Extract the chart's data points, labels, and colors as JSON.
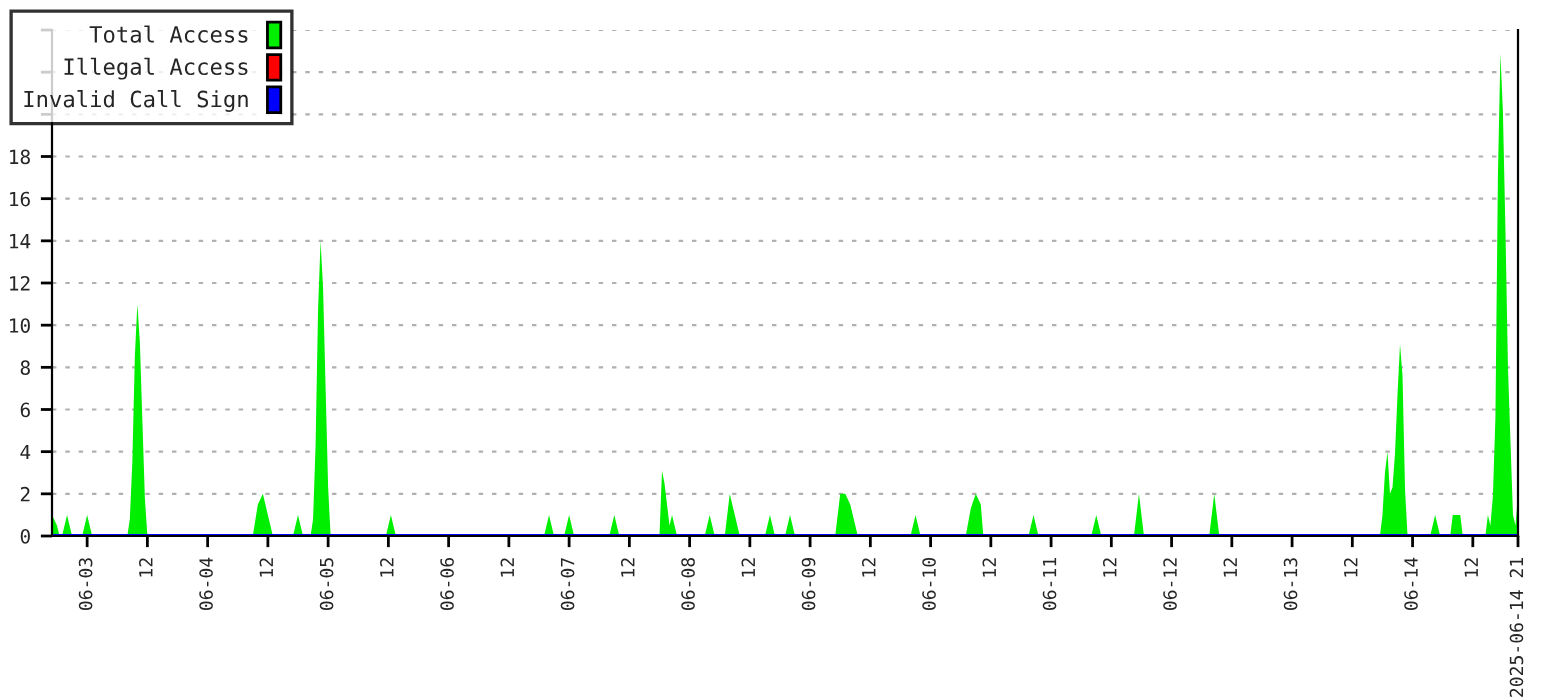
{
  "chart_data": {
    "type": "area",
    "xlim": [
      "2025-06-02T17:00",
      "2025-06-14T21:00"
    ],
    "xticks": [
      {
        "value": "2025-06-03",
        "label": "06-03"
      },
      {
        "value": "2025-06-03T12:00",
        "label": "12"
      },
      {
        "value": "2025-06-04",
        "label": "06-04"
      },
      {
        "value": "2025-06-04T12:00",
        "label": "12"
      },
      {
        "value": "2025-06-05",
        "label": "06-05"
      },
      {
        "value": "2025-06-05T12:00",
        "label": "12"
      },
      {
        "value": "2025-06-06",
        "label": "06-06"
      },
      {
        "value": "2025-06-06T12:00",
        "label": "12"
      },
      {
        "value": "2025-06-07",
        "label": "06-07"
      },
      {
        "value": "2025-06-07T12:00",
        "label": "12"
      },
      {
        "value": "2025-06-08",
        "label": "06-08"
      },
      {
        "value": "2025-06-08T12:00",
        "label": "12"
      },
      {
        "value": "2025-06-09",
        "label": "06-09"
      },
      {
        "value": "2025-06-09T12:00",
        "label": "12"
      },
      {
        "value": "2025-06-10",
        "label": "06-10"
      },
      {
        "value": "2025-06-10T12:00",
        "label": "12"
      },
      {
        "value": "2025-06-11",
        "label": "06-11"
      },
      {
        "value": "2025-06-11T12:00",
        "label": "12"
      },
      {
        "value": "2025-06-12",
        "label": "06-12"
      },
      {
        "value": "2025-06-12T12:00",
        "label": "12"
      },
      {
        "value": "2025-06-13",
        "label": "06-13"
      },
      {
        "value": "2025-06-13T12:00",
        "label": "12"
      },
      {
        "value": "2025-06-14",
        "label": "06-14"
      },
      {
        "value": "2025-06-14T12:00",
        "label": "12"
      },
      {
        "value": "2025-06-14T21:00",
        "label": "2025-06-14 21"
      }
    ],
    "ylim": [
      0,
      24
    ],
    "yticks": [
      0,
      2,
      4,
      6,
      8,
      10,
      12,
      14,
      16,
      18,
      {
        "value": 20,
        "label": null
      },
      {
        "value": 22,
        "label": null
      },
      {
        "value": 24,
        "label": null
      }
    ],
    "grid": "y",
    "legend": "top left",
    "series": [
      {
        "name": "Total Access",
        "color": "#00ee00",
        "x": [
          "2025-06-02T17:00",
          "2025-06-02T18:00",
          "2025-06-02T18:30",
          "2025-06-02T19:00",
          "2025-06-02T20:00",
          "2025-06-02T21:00",
          "2025-06-02T23:00",
          "2025-06-03T00:00",
          "2025-06-03T01:00",
          "2025-06-03T08:00",
          "2025-06-03T08:30",
          "2025-06-03T09:00",
          "2025-06-03T09:30",
          "2025-06-03T10:00",
          "2025-06-03T10:30",
          "2025-06-03T11:00",
          "2025-06-03T11:30",
          "2025-06-03T12:00",
          "2025-06-04T09:00",
          "2025-06-04T10:00",
          "2025-06-04T11:00",
          "2025-06-04T12:00",
          "2025-06-04T13:00",
          "2025-06-04T17:00",
          "2025-06-04T18:00",
          "2025-06-04T19:00",
          "2025-06-04T20:30",
          "2025-06-04T21:00",
          "2025-06-04T21:30",
          "2025-06-04T22:00",
          "2025-06-04T22:30",
          "2025-06-04T23:00",
          "2025-06-04T23:30",
          "2025-06-05T00:00",
          "2025-06-05T00:30",
          "2025-06-05T11:30",
          "2025-06-05T12:30",
          "2025-06-05T13:30",
          "2025-06-06T19:00",
          "2025-06-06T20:00",
          "2025-06-06T21:00",
          "2025-06-06T23:00",
          "2025-06-07T00:00",
          "2025-06-07T01:00",
          "2025-06-07T08:00",
          "2025-06-07T09:00",
          "2025-06-07T10:00",
          "2025-06-07T18:00",
          "2025-06-07T18:30",
          "2025-06-07T19:00",
          "2025-06-07T19:30",
          "2025-06-07T20:00",
          "2025-06-07T20:30",
          "2025-06-07T21:00",
          "2025-06-07T21:30",
          "2025-06-08T03:00",
          "2025-06-08T04:00",
          "2025-06-08T05:00",
          "2025-06-08T07:00",
          "2025-06-08T08:00",
          "2025-06-08T08:30",
          "2025-06-08T09:00",
          "2025-06-08T09:30",
          "2025-06-08T10:00",
          "2025-06-08T15:00",
          "2025-06-08T16:00",
          "2025-06-08T17:00",
          "2025-06-08T19:00",
          "2025-06-08T20:00",
          "2025-06-08T21:00",
          "2025-06-09T05:00",
          "2025-06-09T06:00",
          "2025-06-09T07:00",
          "2025-06-09T08:00",
          "2025-06-09T09:00",
          "2025-06-09T09:30",
          "2025-06-09T20:00",
          "2025-06-09T21:00",
          "2025-06-09T22:00",
          "2025-06-10T07:00",
          "2025-06-10T08:00",
          "2025-06-10T09:00",
          "2025-06-10T10:00",
          "2025-06-10T10:30",
          "2025-06-10T19:30",
          "2025-06-10T20:30",
          "2025-06-10T21:30",
          "2025-06-11T08:00",
          "2025-06-11T09:00",
          "2025-06-11T10:00",
          "2025-06-11T16:30",
          "2025-06-11T17:30",
          "2025-06-11T18:30",
          "2025-06-12T07:30",
          "2025-06-12T08:30",
          "2025-06-12T09:30",
          "2025-06-13T17:30",
          "2025-06-13T18:00",
          "2025-06-13T18:30",
          "2025-06-13T19:00",
          "2025-06-13T19:30",
          "2025-06-13T20:00",
          "2025-06-13T20:30",
          "2025-06-13T21:00",
          "2025-06-13T21:30",
          "2025-06-13T22:00",
          "2025-06-13T22:30",
          "2025-06-13T23:00",
          "2025-06-14T03:30",
          "2025-06-14T04:30",
          "2025-06-14T05:30",
          "2025-06-14T07:30",
          "2025-06-14T08:00",
          "2025-06-14T09:30",
          "2025-06-14T10:00",
          "2025-06-14T14:30",
          "2025-06-14T15:00",
          "2025-06-14T15:30",
          "2025-06-14T16:00",
          "2025-06-14T16:30",
          "2025-06-14T17:00",
          "2025-06-14T17:30",
          "2025-06-14T18:00",
          "2025-06-14T18:30",
          "2025-06-14T19:00",
          "2025-06-14T19:30",
          "2025-06-14T20:00",
          "2025-06-14T20:30",
          "2025-06-14T21:00"
        ],
        "values": [
          1,
          0.5,
          0,
          0,
          1,
          0,
          0,
          1,
          0,
          0,
          0.8,
          3.5,
          8.5,
          11,
          9.2,
          5.5,
          1.8,
          0,
          0,
          1.5,
          2,
          1,
          0,
          0,
          1,
          0,
          0,
          0.8,
          4.3,
          10.8,
          14,
          11.7,
          7,
          2.3,
          0,
          0,
          1,
          0,
          0,
          1,
          0,
          0,
          1,
          0,
          0,
          1,
          0,
          0,
          3.1,
          2.5,
          1.5,
          0.5,
          1,
          0.5,
          0,
          0,
          1,
          0,
          0,
          2,
          1.5,
          1,
          0.5,
          0,
          0,
          1,
          0,
          0,
          1,
          0,
          0,
          2,
          2,
          1.5,
          0.5,
          0,
          0,
          1,
          0,
          0,
          1.3,
          2,
          1.5,
          0,
          0,
          1,
          0,
          0,
          1,
          0,
          0,
          2,
          0,
          0,
          2,
          0,
          0,
          1,
          3,
          4,
          2,
          2.3,
          3.9,
          6.7,
          9.1,
          7.6,
          2.2,
          0,
          0,
          1,
          0,
          0,
          1,
          1,
          0,
          0,
          1,
          0.5,
          1.9,
          5.6,
          17.1,
          22.9,
          20.1,
          14.5,
          8,
          4.5,
          1,
          0.5,
          2
        ]
      },
      {
        "name": "Illegal Access",
        "color": "#ff0000",
        "type": "line"
      },
      {
        "name": "Invalid Call Sign",
        "color": "#0000ff",
        "type": "line",
        "x": [
          "2025-06-02T17:00",
          "2025-06-14T21:00"
        ],
        "values": [
          0,
          0
        ]
      }
    ]
  }
}
